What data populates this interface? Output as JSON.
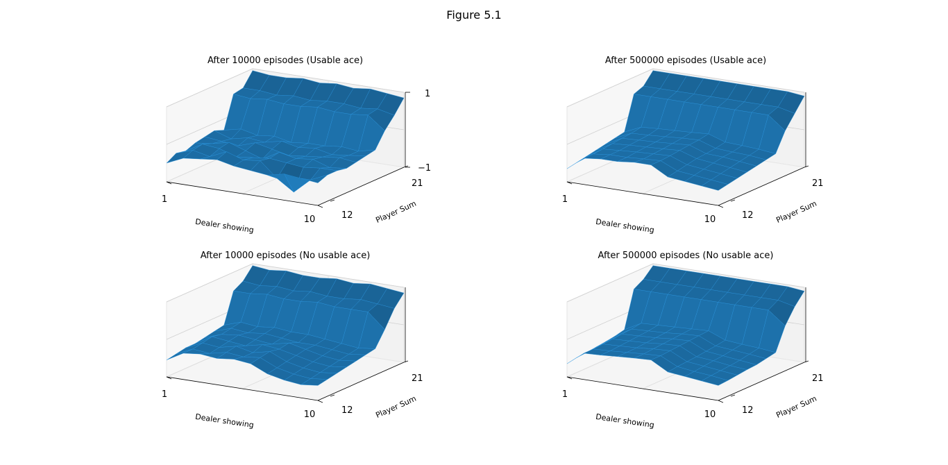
{
  "figure_title": "Figure 5.1",
  "colors": {
    "surface": "#1f77b4",
    "pane": "#f2f2f2",
    "edge": "#000000"
  },
  "chart_data": [
    {
      "type": "surface3d",
      "title": "After 10000 episodes (Usable ace)",
      "xlabel": "Dealer showing",
      "ylabel": "Player Sum",
      "x_ticks": [
        "1",
        "10"
      ],
      "y_ticks": [
        "12",
        "21"
      ],
      "z_ticks": [
        "1",
        "−1"
      ],
      "xlim": [
        1,
        10
      ],
      "ylim": [
        12,
        21
      ],
      "zlim": [
        -1,
        1
      ],
      "dealer": [
        1,
        2,
        3,
        4,
        5,
        6,
        7,
        8,
        9,
        10
      ],
      "player_sum": [
        12,
        13,
        14,
        15,
        16,
        17,
        18,
        19,
        20,
        21
      ],
      "values": [
        [
          -0.5,
          -0.3,
          -0.25,
          -0.2,
          -0.3,
          -0.35,
          -0.4,
          -0.3,
          -0.35,
          -0.4
        ],
        [
          -0.35,
          -0.2,
          -0.3,
          -0.1,
          -0.25,
          -0.2,
          -0.6,
          -0.9,
          -0.5,
          -0.3
        ],
        [
          -0.4,
          -0.15,
          -0.2,
          -0.35,
          -0.3,
          -0.25,
          -0.3,
          -0.35,
          -0.3,
          -0.3
        ],
        [
          -0.3,
          -0.25,
          -0.15,
          -0.3,
          -0.45,
          -0.2,
          -0.3,
          -0.25,
          -0.4,
          -0.35
        ],
        [
          -0.25,
          -0.3,
          -0.35,
          -0.2,
          -0.3,
          -0.4,
          -0.35,
          -0.3,
          -0.25,
          -0.3
        ],
        [
          -0.2,
          -0.35,
          -0.25,
          -0.3,
          -0.2,
          -0.3,
          -0.25,
          -0.35,
          -0.3,
          -0.25
        ],
        [
          -0.3,
          -0.2,
          -0.3,
          -0.25,
          -0.35,
          -0.3,
          -0.3,
          -0.25,
          -0.3,
          -0.2
        ],
        [
          0.55,
          0.5,
          0.55,
          0.5,
          0.5,
          0.55,
          0.5,
          0.5,
          0.55,
          0.2
        ],
        [
          0.6,
          0.6,
          0.55,
          0.6,
          0.55,
          0.6,
          0.6,
          0.55,
          0.6,
          0.5
        ],
        [
          0.95,
          0.9,
          0.9,
          0.95,
          0.9,
          0.95,
          0.9,
          0.95,
          0.9,
          0.85
        ]
      ]
    },
    {
      "type": "surface3d",
      "title": "After 500000 episodes (Usable ace)",
      "xlabel": "Dealer showing",
      "ylabel": "Player Sum",
      "x_ticks": [
        "1",
        "10"
      ],
      "y_ticks": [
        "12",
        "21"
      ],
      "z_ticks": [],
      "xlim": [
        1,
        10
      ],
      "ylim": [
        12,
        21
      ],
      "zlim": [
        -1,
        1
      ],
      "dealer": [
        1,
        2,
        3,
        4,
        5,
        6,
        7,
        8,
        9,
        10
      ],
      "player_sum": [
        12,
        13,
        14,
        15,
        16,
        17,
        18,
        19,
        20,
        21
      ],
      "values": [
        [
          -0.65,
          -0.3,
          -0.25,
          -0.25,
          -0.2,
          -0.2,
          -0.45,
          -0.5,
          -0.55,
          -0.6
        ],
        [
          -0.6,
          -0.3,
          -0.25,
          -0.25,
          -0.22,
          -0.2,
          -0.4,
          -0.45,
          -0.5,
          -0.55
        ],
        [
          -0.55,
          -0.28,
          -0.25,
          -0.22,
          -0.2,
          -0.18,
          -0.35,
          -0.4,
          -0.45,
          -0.5
        ],
        [
          -0.5,
          -0.25,
          -0.22,
          -0.2,
          -0.18,
          -0.15,
          -0.3,
          -0.35,
          -0.4,
          -0.45
        ],
        [
          -0.45,
          -0.22,
          -0.2,
          -0.18,
          -0.15,
          -0.12,
          -0.28,
          -0.3,
          -0.35,
          -0.4
        ],
        [
          -0.4,
          -0.2,
          -0.18,
          -0.15,
          -0.12,
          -0.1,
          -0.25,
          -0.28,
          -0.3,
          -0.35
        ],
        [
          -0.35,
          -0.15,
          -0.12,
          -0.1,
          -0.08,
          -0.05,
          -0.2,
          -0.22,
          -0.25,
          -0.3
        ],
        [
          0.55,
          0.55,
          0.55,
          0.55,
          0.55,
          0.55,
          0.55,
          0.55,
          0.55,
          0.2
        ],
        [
          0.65,
          0.65,
          0.65,
          0.65,
          0.65,
          0.65,
          0.65,
          0.65,
          0.65,
          0.55
        ],
        [
          0.95,
          0.95,
          0.95,
          0.95,
          0.95,
          0.95,
          0.95,
          0.95,
          0.95,
          0.9
        ]
      ]
    },
    {
      "type": "surface3d",
      "title": "After 10000 episodes (No usable ace)",
      "xlabel": "Dealer showing",
      "ylabel": "Player Sum",
      "x_ticks": [
        "1",
        "10"
      ],
      "y_ticks": [
        "12",
        "21"
      ],
      "z_ticks": [],
      "xlim": [
        1,
        10
      ],
      "ylim": [
        12,
        21
      ],
      "zlim": [
        -1,
        1
      ],
      "dealer": [
        1,
        2,
        3,
        4,
        5,
        6,
        7,
        8,
        9,
        10
      ],
      "player_sum": [
        12,
        13,
        14,
        15,
        16,
        17,
        18,
        19,
        20,
        21
      ],
      "values": [
        [
          -0.55,
          -0.3,
          -0.25,
          -0.3,
          -0.25,
          -0.3,
          -0.5,
          -0.6,
          -0.65,
          -0.6
        ],
        [
          -0.5,
          -0.3,
          -0.35,
          -0.25,
          -0.3,
          -0.25,
          -0.45,
          -0.55,
          -0.6,
          -0.55
        ],
        [
          -0.45,
          -0.25,
          -0.3,
          -0.2,
          -0.3,
          -0.2,
          -0.4,
          -0.5,
          -0.55,
          -0.5
        ],
        [
          -0.45,
          -0.2,
          -0.25,
          -0.3,
          -0.2,
          -0.25,
          -0.35,
          -0.45,
          -0.5,
          -0.45
        ],
        [
          -0.4,
          -0.25,
          -0.2,
          -0.25,
          -0.3,
          -0.2,
          -0.3,
          -0.4,
          -0.45,
          -0.4
        ],
        [
          -0.35,
          -0.2,
          -0.25,
          -0.2,
          -0.25,
          -0.3,
          -0.3,
          -0.35,
          -0.4,
          -0.35
        ],
        [
          -0.3,
          -0.15,
          -0.2,
          -0.15,
          -0.2,
          -0.2,
          -0.25,
          -0.3,
          -0.35,
          -0.3
        ],
        [
          0.5,
          0.5,
          0.55,
          0.5,
          0.5,
          0.55,
          0.5,
          0.5,
          0.5,
          0.1
        ],
        [
          0.65,
          0.6,
          0.65,
          0.6,
          0.65,
          0.6,
          0.6,
          0.65,
          0.6,
          0.55
        ],
        [
          0.95,
          0.9,
          0.95,
          0.9,
          0.9,
          0.95,
          0.9,
          0.95,
          0.9,
          0.85
        ]
      ]
    },
    {
      "type": "surface3d",
      "title": "After 500000 episodes (No usable ace)",
      "xlabel": "Dealer showing",
      "ylabel": "Player Sum",
      "x_ticks": [
        "1",
        "10"
      ],
      "y_ticks": [
        "12",
        "21"
      ],
      "z_ticks": [],
      "xlim": [
        1,
        10
      ],
      "ylim": [
        12,
        21
      ],
      "zlim": [
        -1,
        1
      ],
      "dealer": [
        1,
        2,
        3,
        4,
        5,
        6,
        7,
        8,
        9,
        10
      ],
      "player_sum": [
        12,
        13,
        14,
        15,
        16,
        17,
        18,
        19,
        20,
        21
      ],
      "values": [
        [
          -0.65,
          -0.3,
          -0.28,
          -0.25,
          -0.22,
          -0.2,
          -0.45,
          -0.5,
          -0.55,
          -0.6
        ],
        [
          -0.6,
          -0.3,
          -0.28,
          -0.25,
          -0.22,
          -0.2,
          -0.42,
          -0.48,
          -0.52,
          -0.58
        ],
        [
          -0.58,
          -0.28,
          -0.26,
          -0.24,
          -0.2,
          -0.18,
          -0.4,
          -0.45,
          -0.5,
          -0.55
        ],
        [
          -0.55,
          -0.26,
          -0.24,
          -0.22,
          -0.18,
          -0.16,
          -0.38,
          -0.42,
          -0.48,
          -0.52
        ],
        [
          -0.52,
          -0.24,
          -0.22,
          -0.2,
          -0.16,
          -0.14,
          -0.35,
          -0.4,
          -0.45,
          -0.5
        ],
        [
          -0.48,
          -0.22,
          -0.2,
          -0.18,
          -0.14,
          -0.12,
          -0.32,
          -0.36,
          -0.4,
          -0.45
        ],
        [
          -0.42,
          -0.18,
          -0.16,
          -0.14,
          -0.12,
          -0.1,
          -0.28,
          -0.32,
          -0.35,
          -0.4
        ],
        [
          0.55,
          0.55,
          0.55,
          0.55,
          0.55,
          0.55,
          0.55,
          0.55,
          0.55,
          0.2
        ],
        [
          0.7,
          0.7,
          0.7,
          0.7,
          0.7,
          0.7,
          0.7,
          0.7,
          0.7,
          0.6
        ],
        [
          0.95,
          0.95,
          0.95,
          0.95,
          0.95,
          0.95,
          0.95,
          0.95,
          0.95,
          0.9
        ]
      ]
    }
  ]
}
